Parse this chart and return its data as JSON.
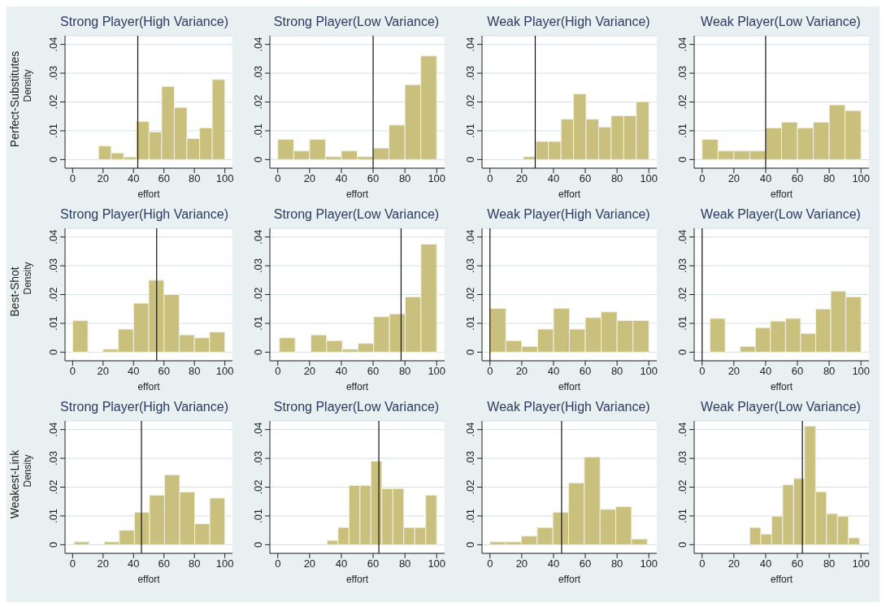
{
  "chart_data": [
    {
      "type": "histogram",
      "title": "Strong Player(High Variance)",
      "xlabel": "effort",
      "ylabel": "Density",
      "annotations": [
        "Perfect-Substitutes"
      ],
      "bins": [
        17,
        25.3,
        33.6,
        41.9,
        50.2,
        58.5,
        66.8,
        75.1,
        83.4,
        91.7,
        100
      ],
      "values": [
        0.0047,
        0.0023,
        0.0009,
        0.0132,
        0.0096,
        0.0254,
        0.0181,
        0.0073,
        0.011,
        0.0278
      ],
      "color": "#c9c07e",
      "xlim": [
        -5,
        105
      ],
      "xticks": [
        0,
        20,
        40,
        60,
        80,
        100
      ],
      "ylim": [
        -0.003,
        0.043
      ],
      "yticks": [
        {
          "value": 0,
          "label": "0"
        },
        {
          "value": 0.01,
          "label": ".01"
        },
        {
          "value": 0.02,
          "label": ".02"
        },
        {
          "value": 0.03,
          "label": ".03"
        },
        {
          "value": 0.04,
          "label": ".04"
        }
      ],
      "grid": "y",
      "ref_lines": [
        {
          "axis": "x",
          "value": 42.8
        }
      ]
    },
    {
      "type": "histogram",
      "title": "Strong Player(Low Variance)",
      "xlabel": "effort",
      "bins": [
        0,
        10,
        20,
        30,
        40,
        50,
        60,
        70,
        80,
        90,
        100
      ],
      "values": [
        0.007,
        0.003,
        0.007,
        0.001,
        0.003,
        0.001,
        0.004,
        0.012,
        0.026,
        0.036
      ],
      "color": "#c9c07e",
      "xlim": [
        -5,
        105
      ],
      "xticks": [
        0,
        20,
        40,
        60,
        80,
        100
      ],
      "ylim": [
        -0.003,
        0.043
      ],
      "yticks": [
        {
          "value": 0,
          "label": "0"
        },
        {
          "value": 0.01,
          "label": ".01"
        },
        {
          "value": 0.02,
          "label": ".02"
        },
        {
          "value": 0.03,
          "label": ".03"
        },
        {
          "value": 0.04,
          "label": ".04"
        }
      ],
      "grid": "y",
      "ref_lines": [
        {
          "axis": "x",
          "value": 60
        }
      ]
    },
    {
      "type": "histogram",
      "title": "Weak Player(High Variance)",
      "xlabel": "effort",
      "bins": [
        21,
        28.9,
        36.8,
        44.7,
        52.6,
        60.5,
        68.4,
        76.3,
        84.2,
        92.1,
        100
      ],
      "values": [
        0.001,
        0.0063,
        0.0063,
        0.014,
        0.0228,
        0.014,
        0.0113,
        0.0152,
        0.0152,
        0.0201
      ],
      "color": "#c9c07e",
      "xlim": [
        -5,
        105
      ],
      "xticks": [
        0,
        20,
        40,
        60,
        80,
        100
      ],
      "ylim": [
        -0.003,
        0.043
      ],
      "yticks": [
        {
          "value": 0,
          "label": "0"
        },
        {
          "value": 0.01,
          "label": ".01"
        },
        {
          "value": 0.02,
          "label": ".02"
        },
        {
          "value": 0.03,
          "label": ".03"
        },
        {
          "value": 0.04,
          "label": ".04"
        }
      ],
      "grid": "y",
      "ref_lines": [
        {
          "axis": "x",
          "value": 28.5
        }
      ]
    },
    {
      "type": "histogram",
      "title": "Weak Player(Low Variance)",
      "xlabel": "effort",
      "bins": [
        0,
        10,
        20,
        30,
        40,
        50,
        60,
        70,
        80,
        90,
        100
      ],
      "values": [
        0.007,
        0.003,
        0.003,
        0.003,
        0.011,
        0.013,
        0.011,
        0.013,
        0.019,
        0.017
      ],
      "color": "#c9c07e",
      "xlim": [
        -5,
        105
      ],
      "xticks": [
        0,
        20,
        40,
        60,
        80,
        100
      ],
      "ylim": [
        -0.003,
        0.043
      ],
      "yticks": [
        {
          "value": 0,
          "label": "0"
        },
        {
          "value": 0.01,
          "label": ".01"
        },
        {
          "value": 0.02,
          "label": ".02"
        },
        {
          "value": 0.03,
          "label": ".03"
        },
        {
          "value": 0.04,
          "label": ".04"
        }
      ],
      "grid": "y",
      "ref_lines": [
        {
          "axis": "x",
          "value": 40
        }
      ]
    },
    {
      "type": "histogram",
      "title": "Strong Player(High Variance)",
      "xlabel": "effort",
      "ylabel": "Density",
      "annotations": [
        "Best-Shot"
      ],
      "bins": [
        0,
        10,
        20,
        30,
        40,
        50,
        60,
        70,
        80,
        90,
        100
      ],
      "values": [
        0.011,
        0,
        0.001,
        0.008,
        0.017,
        0.025,
        0.02,
        0.006,
        0.005,
        0.007
      ],
      "color": "#c9c07e",
      "xlim": [
        -5,
        105
      ],
      "xticks": [
        0,
        20,
        40,
        60,
        80,
        100
      ],
      "ylim": [
        -0.003,
        0.043
      ],
      "yticks": [
        {
          "value": 0,
          "label": "0"
        },
        {
          "value": 0.01,
          "label": ".01"
        },
        {
          "value": 0.02,
          "label": ".02"
        },
        {
          "value": 0.03,
          "label": ".03"
        },
        {
          "value": 0.04,
          "label": ".04"
        }
      ],
      "grid": "y",
      "ref_lines": [
        {
          "axis": "x",
          "value": 55.2
        }
      ]
    },
    {
      "type": "histogram",
      "title": "Strong Player(Low Variance)",
      "xlabel": "effort",
      "bins": [
        1,
        10.9,
        20.8,
        30.7,
        40.6,
        50.5,
        60.4,
        70.3,
        80.2,
        90.1,
        100
      ],
      "values": [
        0.005,
        0,
        0.006,
        0.004,
        0.001,
        0.003,
        0.0123,
        0.0133,
        0.0192,
        0.0375
      ],
      "color": "#c9c07e",
      "xlim": [
        -5,
        105
      ],
      "xticks": [
        0,
        20,
        40,
        60,
        80,
        100
      ],
      "ylim": [
        -0.003,
        0.043
      ],
      "yticks": [
        {
          "value": 0,
          "label": "0"
        },
        {
          "value": 0.01,
          "label": ".01"
        },
        {
          "value": 0.02,
          "label": ".02"
        },
        {
          "value": 0.03,
          "label": ".03"
        },
        {
          "value": 0.04,
          "label": ".04"
        }
      ],
      "grid": "y",
      "ref_lines": [
        {
          "axis": "x",
          "value": 77.6
        }
      ]
    },
    {
      "type": "histogram",
      "title": "Weak Player(High Variance)",
      "xlabel": "effort",
      "bins": [
        0,
        10,
        20,
        30,
        40,
        50,
        60,
        70,
        80,
        90,
        100
      ],
      "values": [
        0.0152,
        0.004,
        0.002,
        0.008,
        0.0152,
        0.008,
        0.012,
        0.014,
        0.011,
        0.011
      ],
      "color": "#c9c07e",
      "xlim": [
        -5,
        105
      ],
      "xticks": [
        0,
        20,
        40,
        60,
        80,
        100
      ],
      "ylim": [
        -0.003,
        0.043
      ],
      "yticks": [
        {
          "value": 0,
          "label": "0"
        },
        {
          "value": 0.01,
          "label": ".01"
        },
        {
          "value": 0.02,
          "label": ".02"
        },
        {
          "value": 0.03,
          "label": ".03"
        },
        {
          "value": 0.04,
          "label": ".04"
        }
      ],
      "grid": "y",
      "ref_lines": [
        {
          "axis": "x",
          "value": 0
        }
      ]
    },
    {
      "type": "histogram",
      "title": "Weak Player(Low Variance)",
      "xlabel": "effort",
      "bins": [
        5,
        14.5,
        24,
        33.5,
        43,
        52.5,
        62,
        71.5,
        81,
        90.5,
        100
      ],
      "values": [
        0.0117,
        0,
        0.002,
        0.0085,
        0.0108,
        0.0117,
        0.0065,
        0.015,
        0.0212,
        0.0192
      ],
      "color": "#c9c07e",
      "xlim": [
        -5,
        105
      ],
      "xticks": [
        0,
        20,
        40,
        60,
        80,
        100
      ],
      "ylim": [
        -0.003,
        0.043
      ],
      "yticks": [
        {
          "value": 0,
          "label": "0"
        },
        {
          "value": 0.01,
          "label": ".01"
        },
        {
          "value": 0.02,
          "label": ".02"
        },
        {
          "value": 0.03,
          "label": ".03"
        },
        {
          "value": 0.04,
          "label": ".04"
        }
      ],
      "grid": "y",
      "ref_lines": [
        {
          "axis": "x",
          "value": 0
        }
      ]
    },
    {
      "type": "histogram",
      "title": "Strong Player(High Variance)",
      "xlabel": "effort",
      "ylabel": "Density",
      "annotations": [
        "Weakest-Link"
      ],
      "bins": [
        1,
        10.9,
        20.8,
        30.7,
        40.6,
        50.5,
        60.4,
        70.3,
        80.2,
        90.1,
        100
      ],
      "values": [
        0.001,
        0,
        0.001,
        0.005,
        0.0113,
        0.0172,
        0.0243,
        0.0183,
        0.0073,
        0.0162
      ],
      "color": "#c9c07e",
      "xlim": [
        -5,
        105
      ],
      "xticks": [
        0,
        20,
        40,
        60,
        80,
        100
      ],
      "ylim": [
        -0.003,
        0.043
      ],
      "yticks": [
        {
          "value": 0,
          "label": "0"
        },
        {
          "value": 0.01,
          "label": ".01"
        },
        {
          "value": 0.02,
          "label": ".02"
        },
        {
          "value": 0.03,
          "label": ".03"
        },
        {
          "value": 0.04,
          "label": ".04"
        }
      ],
      "grid": "y",
      "ref_lines": [
        {
          "axis": "x",
          "value": 45.2
        }
      ]
    },
    {
      "type": "histogram",
      "title": "Strong Player(Low Variance)",
      "xlabel": "effort",
      "bins": [
        31,
        37.9,
        44.8,
        51.7,
        58.6,
        65.5,
        72.4,
        79.3,
        86.2,
        93.1,
        100
      ],
      "values": [
        0.0015,
        0.006,
        0.0206,
        0.0206,
        0.029,
        0.0195,
        0.0195,
        0.006,
        0.006,
        0.0172
      ],
      "color": "#c9c07e",
      "xlim": [
        -5,
        105
      ],
      "xticks": [
        0,
        20,
        40,
        60,
        80,
        100
      ],
      "ylim": [
        -0.003,
        0.043
      ],
      "yticks": [
        {
          "value": 0,
          "label": "0"
        },
        {
          "value": 0.01,
          "label": ".01"
        },
        {
          "value": 0.02,
          "label": ".02"
        },
        {
          "value": 0.03,
          "label": ".03"
        },
        {
          "value": 0.04,
          "label": ".04"
        }
      ],
      "grid": "y",
      "ref_lines": [
        {
          "axis": "x",
          "value": 63.6
        }
      ]
    },
    {
      "type": "histogram",
      "title": "Weak Player(High Variance)",
      "xlabel": "effort",
      "bins": [
        0,
        9.9,
        19.8,
        29.7,
        39.6,
        49.5,
        59.4,
        69.3,
        79.2,
        89.1,
        99
      ],
      "values": [
        0.001,
        0.001,
        0.003,
        0.006,
        0.0113,
        0.0215,
        0.0305,
        0.0123,
        0.0132,
        0.002
      ],
      "color": "#c9c07e",
      "xlim": [
        -5,
        105
      ],
      "xticks": [
        0,
        20,
        40,
        60,
        80,
        100
      ],
      "ylim": [
        -0.003,
        0.043
      ],
      "yticks": [
        {
          "value": 0,
          "label": "0"
        },
        {
          "value": 0.01,
          "label": ".01"
        },
        {
          "value": 0.02,
          "label": ".02"
        },
        {
          "value": 0.03,
          "label": ".03"
        },
        {
          "value": 0.04,
          "label": ".04"
        }
      ],
      "grid": "y",
      "ref_lines": [
        {
          "axis": "x",
          "value": 45.1
        }
      ]
    },
    {
      "type": "histogram",
      "title": "Weak Player(Low Variance)",
      "xlabel": "effort",
      "bins": [
        30,
        36.9,
        43.8,
        50.7,
        57.6,
        64.5,
        71.4,
        78.3,
        85.2,
        92.1,
        99
      ],
      "values": [
        0.006,
        0.0037,
        0.0099,
        0.0208,
        0.023,
        0.0412,
        0.0184,
        0.0108,
        0.0099,
        0.0024
      ],
      "color": "#c9c07e",
      "xlim": [
        -5,
        105
      ],
      "xticks": [
        0,
        20,
        40,
        60,
        80,
        100
      ],
      "ylim": [
        -0.003,
        0.043
      ],
      "yticks": [
        {
          "value": 0,
          "label": "0"
        },
        {
          "value": 0.01,
          "label": ".01"
        },
        {
          "value": 0.02,
          "label": ".02"
        },
        {
          "value": 0.03,
          "label": ".03"
        },
        {
          "value": 0.04,
          "label": ".04"
        }
      ],
      "grid": "y",
      "ref_lines": [
        {
          "axis": "x",
          "value": 63.1
        }
      ]
    }
  ]
}
